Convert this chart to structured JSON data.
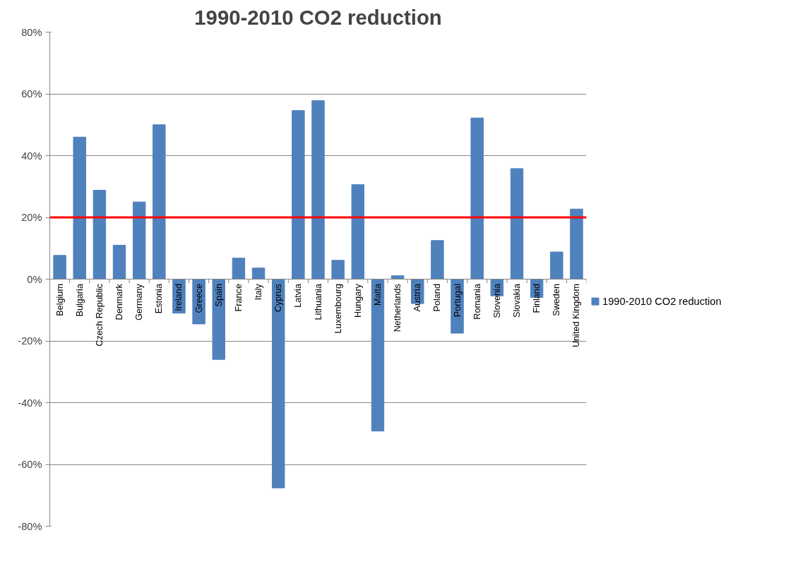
{
  "chart_data": {
    "type": "bar",
    "title": "1990-2010 CO2 reduction",
    "categories": [
      "Belgium",
      "Bulgaria",
      "Czech Republic",
      "Denmark",
      "Germany",
      "Estonia",
      "Ireland",
      "Greece",
      "Spain",
      "France",
      "Italy",
      "Cyprus",
      "Latvia",
      "Lithuania",
      "Luxembourg",
      "Hungary",
      "Malta",
      "Netherlands",
      "Austria",
      "Poland",
      "Portugal",
      "Romania",
      "Slovenia",
      "Slovakia",
      "Finland",
      "Sweden",
      "United Kingdom"
    ],
    "series": [
      {
        "name": "1990-2010 CO2 reduction",
        "color": "#4f81bd",
        "values": [
          7.7,
          46,
          28.8,
          11,
          25,
          50,
          -11,
          -14.5,
          -26,
          6.8,
          3.6,
          -67.6,
          54.6,
          57.8,
          6.1,
          30.6,
          -49.2,
          1.1,
          -7.9,
          12.5,
          -17.5,
          52.2,
          -5.4,
          35.8,
          -5.9,
          8.8,
          22.7
        ]
      }
    ],
    "ylim": [
      -80,
      80
    ],
    "yticks": [
      {
        "value": -80,
        "label": "-80%"
      },
      {
        "value": -60,
        "label": "-60%"
      },
      {
        "value": -40,
        "label": "-40%"
      },
      {
        "value": -20,
        "label": "-20%"
      },
      {
        "value": 0,
        "label": "0%"
      },
      {
        "value": 20,
        "label": "20%"
      },
      {
        "value": 40,
        "label": "40%"
      },
      {
        "value": 60,
        "label": "60%"
      },
      {
        "value": 80,
        "label": "80%"
      }
    ],
    "ref_lines": [
      {
        "axis": "y",
        "value": 20,
        "color": "#ff0000"
      }
    ],
    "grid": "y",
    "legend": "right"
  }
}
